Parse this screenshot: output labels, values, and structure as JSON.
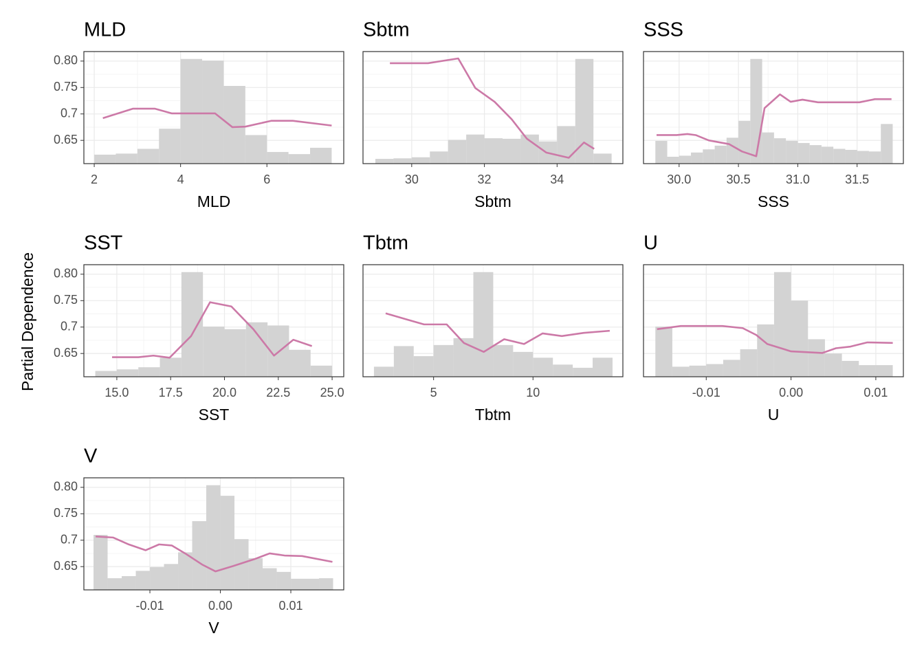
{
  "y_label": "Partial Dependence",
  "chart_data": [
    {
      "type": "line",
      "title": "MLD",
      "x_label": "MLD",
      "xlim": [
        1.76,
        7.78
      ],
      "xticks": [
        2,
        4,
        6
      ],
      "ylim": [
        0.606,
        0.818
      ],
      "yticks": [
        {
          "value": 0.65,
          "label": "0.65"
        },
        0.7,
        0.75,
        {
          "value": 0.8,
          "label": "0.80"
        }
      ],
      "yticklabels": true,
      "grid": true,
      "color": "#cc79a7",
      "x": [
        2.2,
        2.9,
        3.4,
        3.8,
        4.8,
        5.2,
        5.5,
        6.1,
        6.6,
        7.5
      ],
      "values": [
        0.692,
        0.71,
        0.71,
        0.701,
        0.701,
        0.675,
        0.676,
        0.687,
        0.687,
        0.678
      ],
      "histogram": {
        "color": "#d3d3d3",
        "bins": [
          2,
          2.5,
          3,
          3.5,
          4,
          4.5,
          5,
          5.5,
          6,
          6.5,
          7,
          7.5
        ],
        "values": [
          0.623,
          0.625,
          0.634,
          0.672,
          0.804,
          0.801,
          0.753,
          0.66,
          0.628,
          0.624,
          0.636
        ]
      }
    },
    {
      "type": "line",
      "title": "Sbtm",
      "x_label": "Sbtm",
      "xlim": [
        28.66,
        35.81
      ],
      "xticks": [
        30,
        32,
        34
      ],
      "ylim": [
        0.606,
        0.818
      ],
      "yticks": [
        0.65,
        0.7,
        0.75,
        0.8
      ],
      "yticklabels": false,
      "grid": true,
      "color": "#cc79a7",
      "x": [
        29.4,
        30.45,
        31.28,
        31.75,
        32.28,
        32.75,
        33.17,
        33.7,
        34.32,
        34.74,
        35.02
      ],
      "values": [
        0.796,
        0.796,
        0.805,
        0.749,
        0.723,
        0.69,
        0.653,
        0.627,
        0.617,
        0.646,
        0.634
      ],
      "histogram": {
        "color": "#d3d3d3",
        "bins": [
          29,
          29.5,
          30,
          30.5,
          31,
          31.5,
          32,
          32.5,
          33,
          33.5,
          34,
          34.5,
          35,
          35.5
        ],
        "values": [
          0.615,
          0.616,
          0.618,
          0.629,
          0.651,
          0.661,
          0.654,
          0.653,
          0.661,
          0.648,
          0.677,
          0.804,
          0.625
        ]
      }
    },
    {
      "type": "line",
      "title": "SSS",
      "x_label": "SSS",
      "xlim": [
        29.7,
        31.89
      ],
      "xticks": [
        {
          "value": 30,
          "label": "30.0"
        },
        30.5,
        {
          "value": 31,
          "label": "31.0"
        },
        31.5
      ],
      "ylim": [
        0.606,
        0.818
      ],
      "yticks": [
        0.65,
        0.7,
        0.75,
        0.8
      ],
      "yticklabels": false,
      "grid": true,
      "color": "#cc79a7",
      "x": [
        29.81,
        29.98,
        30.07,
        30.14,
        30.25,
        30.42,
        30.53,
        30.65,
        30.72,
        30.85,
        30.94,
        31.04,
        31.17,
        31.52,
        31.65,
        31.79
      ],
      "values": [
        0.66,
        0.66,
        0.662,
        0.66,
        0.65,
        0.643,
        0.629,
        0.62,
        0.711,
        0.737,
        0.723,
        0.727,
        0.722,
        0.722,
        0.728,
        0.728
      ],
      "histogram": {
        "color": "#d3d3d3",
        "bins": [
          29.8,
          29.9,
          30,
          30.1,
          30.2,
          30.3,
          30.4,
          30.5,
          30.6,
          30.7,
          30.8,
          30.9,
          31,
          31.1,
          31.2,
          31.3,
          31.4,
          31.5,
          31.6,
          31.7,
          31.8
        ],
        "values": [
          0.649,
          0.619,
          0.621,
          0.627,
          0.633,
          0.64,
          0.655,
          0.687,
          0.804,
          0.665,
          0.654,
          0.649,
          0.645,
          0.641,
          0.638,
          0.634,
          0.632,
          0.63,
          0.629,
          0.681
        ]
      }
    },
    {
      "type": "line",
      "title": "SST",
      "x_label": "SST",
      "xlim": [
        13.47,
        25.54
      ],
      "xticks": [
        {
          "value": 15,
          "label": "15.0"
        },
        17.5,
        {
          "value": 20,
          "label": "20.0"
        },
        22.5,
        {
          "value": 25,
          "label": "25.0"
        }
      ],
      "ylim": [
        0.606,
        0.818
      ],
      "yticks": [
        {
          "value": 0.65,
          "label": "0.65"
        },
        0.7,
        0.75,
        {
          "value": 0.8,
          "label": "0.80"
        }
      ],
      "yticklabels": true,
      "grid": true,
      "color": "#cc79a7",
      "x": [
        14.78,
        16.0,
        16.7,
        17.45,
        18.45,
        19.33,
        20.32,
        21.34,
        22.3,
        23.2,
        24.06
      ],
      "values": [
        0.643,
        0.643,
        0.646,
        0.642,
        0.683,
        0.747,
        0.739,
        0.696,
        0.646,
        0.676,
        0.664
      ],
      "histogram": {
        "color": "#d3d3d3",
        "bins": [
          14,
          15,
          16,
          17,
          18,
          19,
          20,
          21,
          22,
          23,
          24,
          25
        ],
        "values": [
          0.617,
          0.62,
          0.624,
          0.642,
          0.804,
          0.701,
          0.696,
          0.709,
          0.703,
          0.657,
          0.627
        ]
      }
    },
    {
      "type": "line",
      "title": "Tbtm",
      "x_label": "Tbtm",
      "xlim": [
        1.45,
        14.52
      ],
      "xticks": [
        5,
        10
      ],
      "ylim": [
        0.606,
        0.818
      ],
      "yticks": [
        0.65,
        0.7,
        0.75,
        0.8
      ],
      "yticklabels": false,
      "grid": true,
      "color": "#cc79a7",
      "x": [
        2.59,
        3.6,
        4.52,
        5.66,
        6.52,
        7.52,
        8.55,
        9.55,
        10.48,
        11.45,
        12.55,
        13.86
      ],
      "values": [
        0.726,
        0.715,
        0.705,
        0.705,
        0.67,
        0.653,
        0.677,
        0.668,
        0.688,
        0.683,
        0.689,
        0.693
      ],
      "histogram": {
        "color": "#d3d3d3",
        "bins": [
          2,
          3,
          4,
          5,
          6,
          7,
          8,
          9,
          10,
          11,
          12,
          13,
          14
        ],
        "values": [
          0.625,
          0.664,
          0.645,
          0.666,
          0.679,
          0.804,
          0.666,
          0.653,
          0.642,
          0.629,
          0.623,
          0.642
        ]
      }
    },
    {
      "type": "line",
      "title": "U",
      "x_label": "U",
      "xlim": [
        -0.0174,
        0.01325
      ],
      "xticks": [
        -0.01,
        {
          "value": 0,
          "label": "0.00"
        },
        0.01
      ],
      "ylim": [
        0.606,
        0.818
      ],
      "yticks": [
        0.65,
        0.7,
        0.75,
        0.8
      ],
      "yticklabels": false,
      "grid": true,
      "color": "#cc79a7",
      "x": [
        -0.0158,
        -0.013,
        -0.0081,
        -0.0057,
        -0.0041,
        -0.0028,
        0,
        0.0037,
        0.0053,
        0.007,
        0.009,
        0.012
      ],
      "values": [
        0.696,
        0.702,
        0.702,
        0.698,
        0.685,
        0.668,
        0.654,
        0.651,
        0.66,
        0.663,
        0.671,
        0.67
      ],
      "histogram": {
        "color": "#d3d3d3",
        "bins": [
          -0.016,
          -0.014,
          -0.012,
          -0.01,
          -0.008,
          -0.006,
          -0.004,
          -0.002,
          0,
          0.002,
          0.004,
          0.006,
          0.008,
          0.01,
          0.012
        ],
        "values": [
          0.701,
          0.625,
          0.627,
          0.63,
          0.638,
          0.658,
          0.705,
          0.804,
          0.75,
          0.677,
          0.65,
          0.636,
          0.628,
          0.628
        ]
      }
    },
    {
      "type": "line",
      "title": "V",
      "x_label": "V",
      "xlim": [
        -0.01937,
        0.01751
      ],
      "xticks": [
        -0.01,
        {
          "value": 0,
          "label": "0.00"
        },
        0.01
      ],
      "ylim": [
        0.606,
        0.818
      ],
      "yticks": [
        {
          "value": 0.65,
          "label": "0.65"
        },
        0.7,
        0.75,
        {
          "value": 0.8,
          "label": "0.80"
        }
      ],
      "yticklabels": true,
      "grid": true,
      "color": "#cc79a7",
      "x": [
        -0.0177,
        -0.0152,
        -0.013,
        -0.0106,
        -0.0087,
        -0.0069,
        -0.005,
        -0.0026,
        -0.0007,
        0.0018,
        0.0048,
        0.007,
        0.0091,
        0.0116,
        0.0159
      ],
      "values": [
        0.707,
        0.705,
        0.692,
        0.681,
        0.692,
        0.69,
        0.675,
        0.654,
        0.641,
        0.651,
        0.664,
        0.675,
        0.671,
        0.67,
        0.659
      ],
      "histogram": {
        "color": "#d3d3d3",
        "bins": [
          -0.018,
          -0.016,
          -0.014,
          -0.012,
          -0.01,
          -0.008,
          -0.006,
          -0.004,
          -0.002,
          0,
          0.002,
          0.004,
          0.006,
          0.008,
          0.01,
          0.012,
          0.014,
          0.016
        ],
        "values": [
          0.71,
          0.628,
          0.632,
          0.642,
          0.649,
          0.655,
          0.677,
          0.736,
          0.804,
          0.784,
          0.702,
          0.666,
          0.647,
          0.64,
          0.627,
          0.627,
          0.628
        ]
      }
    }
  ]
}
